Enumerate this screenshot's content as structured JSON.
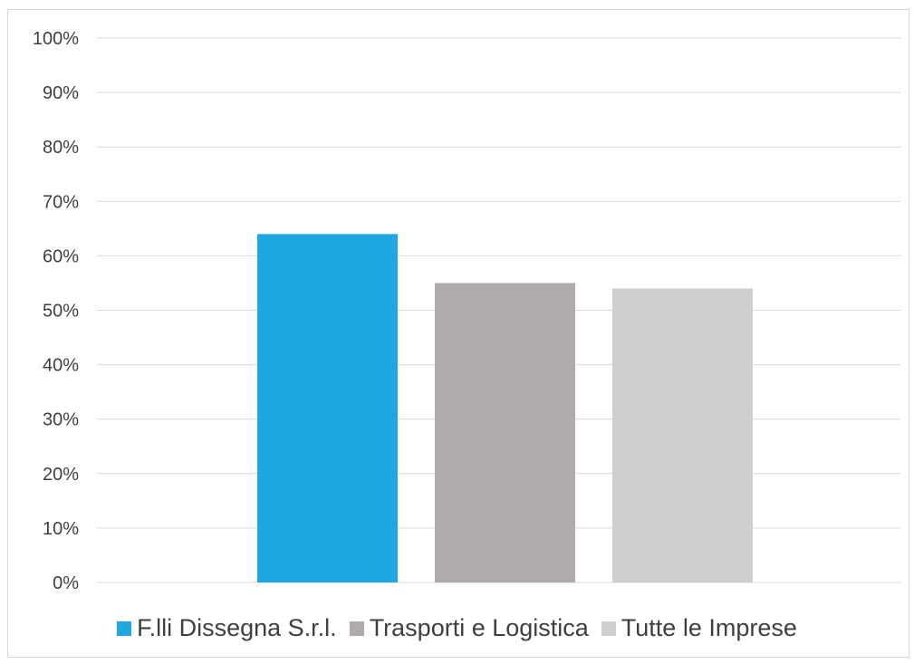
{
  "chart_data": {
    "type": "bar",
    "title": "",
    "xlabel": "",
    "ylabel": "",
    "ylim": [
      0,
      100
    ],
    "y_ticks": [
      0,
      10,
      20,
      30,
      40,
      50,
      60,
      70,
      80,
      90,
      100
    ],
    "y_tick_labels": [
      "0%",
      "10%",
      "20%",
      "30%",
      "40%",
      "50%",
      "60%",
      "70%",
      "80%",
      "90%",
      "100%"
    ],
    "grid": true,
    "legend_position": "bottom",
    "series": [
      {
        "name": "F.lli Dissegna S.r.l.",
        "values": [
          64
        ],
        "color": "#1ea7e1"
      },
      {
        "name": "Trasporti e Logistica",
        "values": [
          55
        ],
        "color": "#afabaa"
      },
      {
        "name": "Tutte le Imprese",
        "values": [
          54
        ],
        "color": "#d0cecf"
      }
    ]
  }
}
